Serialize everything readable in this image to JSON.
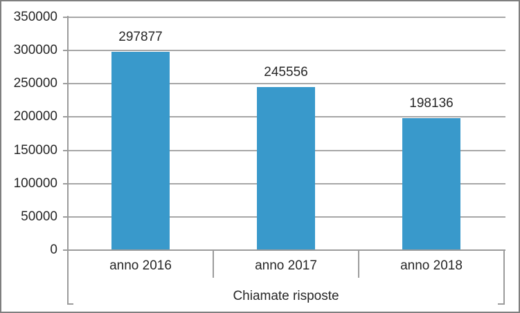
{
  "chart_data": {
    "type": "bar",
    "title": "",
    "xlabel": "Chiamate risposte",
    "ylabel": "",
    "categories": [
      "anno 2016",
      "anno 2017",
      "anno 2018"
    ],
    "values": [
      297877,
      245556,
      198136
    ],
    "ylim": [
      0,
      350000
    ],
    "ytick_step": 50000,
    "yticks": [
      0,
      50000,
      100000,
      150000,
      200000,
      250000,
      300000,
      350000
    ],
    "grid": true,
    "legend": false,
    "data_labels_visible": true,
    "colors": {
      "bar": "#3999cb",
      "gridline": "#a6a6a6",
      "axis": "#9b9b9b",
      "text": "#262626",
      "frame_border": "#7f7f7f",
      "background": "#ffffff"
    }
  }
}
